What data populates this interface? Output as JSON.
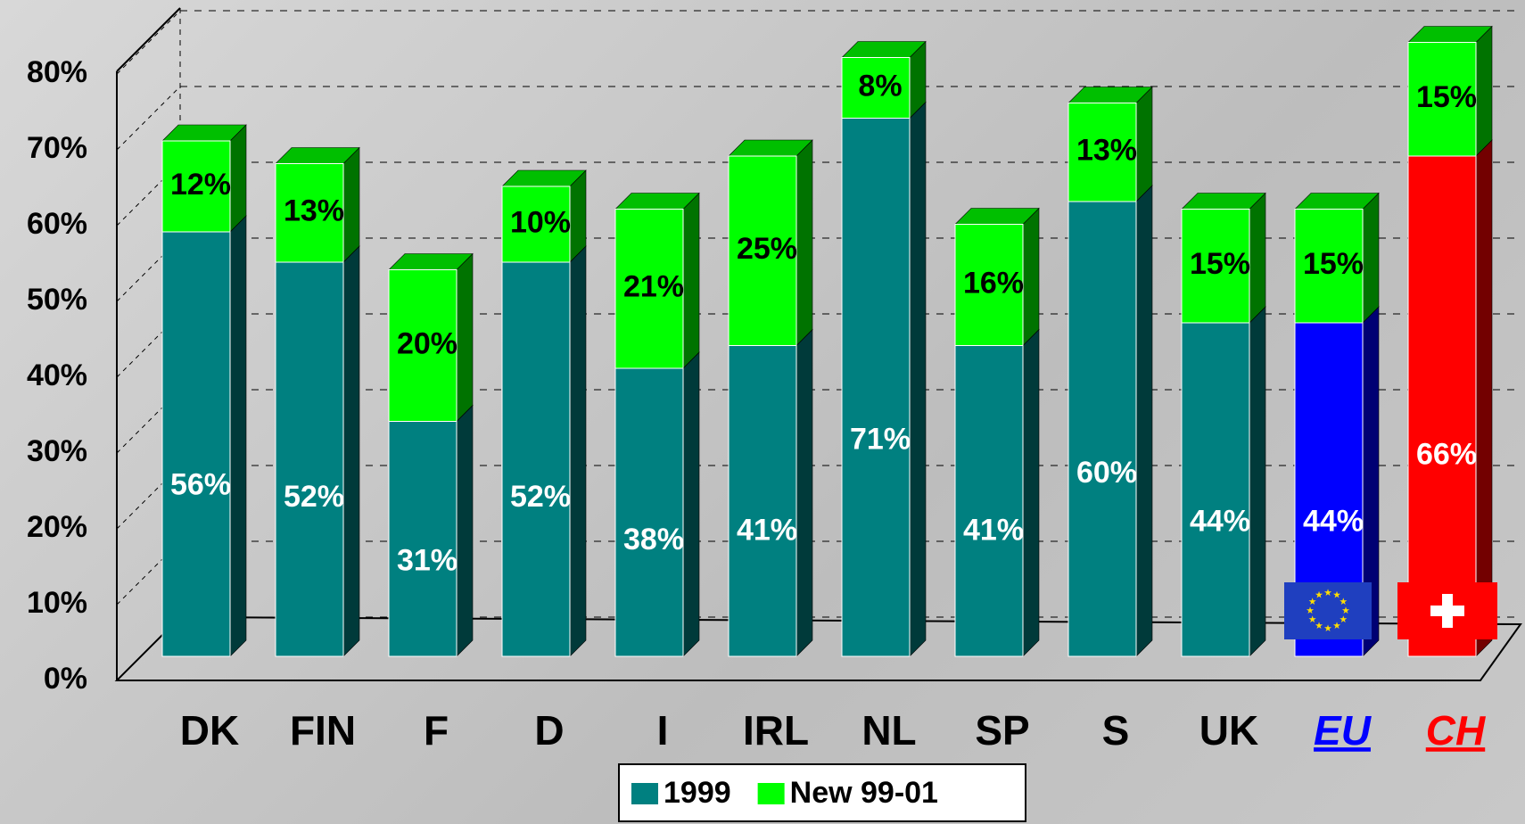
{
  "chart_data": {
    "type": "bar",
    "stacked": true,
    "categories": [
      "DK",
      "FIN",
      "F",
      "D",
      "I",
      "IRL",
      "NL",
      "SP",
      "S",
      "UK",
      "EU",
      "CH"
    ],
    "category_colors": [
      "#000000",
      "#000000",
      "#000000",
      "#000000",
      "#000000",
      "#000000",
      "#000000",
      "#000000",
      "#000000",
      "#000000",
      "#0000ff",
      "#ff0000"
    ],
    "series": [
      {
        "name": "1999",
        "color": "#008080",
        "colors": [
          "#008080",
          "#008080",
          "#008080",
          "#008080",
          "#008080",
          "#008080",
          "#008080",
          "#008080",
          "#008080",
          "#008080",
          "#0000ff",
          "#ff0000"
        ],
        "label_color": "#ffffff",
        "values": [
          56,
          52,
          31,
          52,
          38,
          41,
          71,
          41,
          60,
          44,
          44,
          66
        ],
        "value_labels": [
          "56%",
          "52%",
          "31%",
          "52%",
          "38%",
          "41%",
          "71%",
          "41%",
          "60%",
          "44%",
          "44%",
          "66%"
        ]
      },
      {
        "name": "New 99-01",
        "color": "#00ff00",
        "colors": [
          "#00ff00",
          "#00ff00",
          "#00ff00",
          "#00ff00",
          "#00ff00",
          "#00ff00",
          "#00ff00",
          "#00ff00",
          "#00ff00",
          "#00ff00",
          "#00ff00",
          "#00ff00"
        ],
        "label_color": "#000000",
        "values": [
          12,
          13,
          20,
          10,
          21,
          25,
          8,
          16,
          13,
          15,
          15,
          15
        ],
        "value_labels": [
          "12%",
          "13%",
          "20%",
          "10%",
          "21%",
          "25%",
          "8%",
          "16%",
          "13%",
          "15%",
          "15%",
          "15%"
        ]
      }
    ],
    "ylim": [
      0,
      80
    ],
    "yticks": [
      {
        "value": 0,
        "label": "0%"
      },
      {
        "value": 10,
        "label": "10%"
      },
      {
        "value": 20,
        "label": "20%"
      },
      {
        "value": 30,
        "label": "30%"
      },
      {
        "value": 40,
        "label": "40%"
      },
      {
        "value": 50,
        "label": "50%"
      },
      {
        "value": 60,
        "label": "60%"
      },
      {
        "value": 70,
        "label": "70%"
      },
      {
        "value": 80,
        "label": "80%"
      }
    ],
    "grid": true,
    "legend": "bottom"
  }
}
